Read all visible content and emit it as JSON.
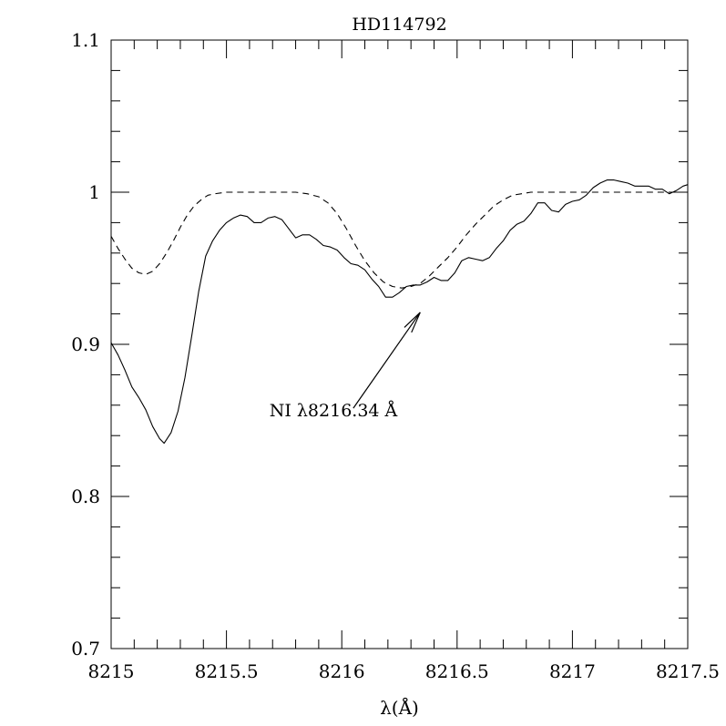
{
  "chart_data": {
    "type": "line",
    "title": "HD114792",
    "xlabel": "λ(Å)",
    "ylabel": "",
    "xlim": [
      8215,
      8217.5
    ],
    "ylim": [
      0.7,
      1.1
    ],
    "xticks": [
      8215,
      8215.5,
      8216,
      8216.5,
      8217,
      8217.5
    ],
    "xtick_labels": [
      "8215",
      "8215.5",
      "8216",
      "8216.5",
      "8217",
      "8217.5"
    ],
    "yticks": [
      0.7,
      0.8,
      0.9,
      1.0,
      1.1
    ],
    "ytick_labels": [
      "0.7",
      "0.8",
      "0.9",
      "1",
      "1.1"
    ],
    "grid": false,
    "annotation": {
      "text": "NI λ8216.34 Å",
      "arrow_from": [
        8216.05,
        0.858
      ],
      "arrow_to": [
        8216.34,
        0.921
      ]
    },
    "series": [
      {
        "style": "solid",
        "points": [
          [
            8215.0,
            0.901
          ],
          [
            8215.03,
            0.893
          ],
          [
            8215.06,
            0.883
          ],
          [
            8215.09,
            0.872
          ],
          [
            8215.12,
            0.865
          ],
          [
            8215.15,
            0.857
          ],
          [
            8215.18,
            0.846
          ],
          [
            8215.21,
            0.838
          ],
          [
            8215.23,
            0.835
          ],
          [
            8215.26,
            0.842
          ],
          [
            8215.29,
            0.856
          ],
          [
            8215.32,
            0.878
          ],
          [
            8215.35,
            0.906
          ],
          [
            8215.38,
            0.935
          ],
          [
            8215.41,
            0.958
          ],
          [
            8215.44,
            0.968
          ],
          [
            8215.47,
            0.975
          ],
          [
            8215.5,
            0.98
          ],
          [
            8215.53,
            0.983
          ],
          [
            8215.56,
            0.985
          ],
          [
            8215.59,
            0.984
          ],
          [
            8215.62,
            0.98
          ],
          [
            8215.65,
            0.98
          ],
          [
            8215.68,
            0.983
          ],
          [
            8215.71,
            0.984
          ],
          [
            8215.74,
            0.982
          ],
          [
            8215.77,
            0.976
          ],
          [
            8215.8,
            0.97
          ],
          [
            8215.83,
            0.972
          ],
          [
            8215.86,
            0.972
          ],
          [
            8215.89,
            0.969
          ],
          [
            8215.92,
            0.965
          ],
          [
            8215.95,
            0.964
          ],
          [
            8215.98,
            0.962
          ],
          [
            8216.01,
            0.957
          ],
          [
            8216.04,
            0.953
          ],
          [
            8216.07,
            0.952
          ],
          [
            8216.1,
            0.949
          ],
          [
            8216.13,
            0.943
          ],
          [
            8216.16,
            0.938
          ],
          [
            8216.19,
            0.931
          ],
          [
            8216.22,
            0.931
          ],
          [
            8216.25,
            0.934
          ],
          [
            8216.28,
            0.938
          ],
          [
            8216.31,
            0.939
          ],
          [
            8216.34,
            0.939
          ],
          [
            8216.37,
            0.941
          ],
          [
            8216.4,
            0.944
          ],
          [
            8216.43,
            0.942
          ],
          [
            8216.46,
            0.942
          ],
          [
            8216.49,
            0.947
          ],
          [
            8216.52,
            0.955
          ],
          [
            8216.55,
            0.957
          ],
          [
            8216.58,
            0.956
          ],
          [
            8216.61,
            0.955
          ],
          [
            8216.64,
            0.957
          ],
          [
            8216.67,
            0.963
          ],
          [
            8216.7,
            0.968
          ],
          [
            8216.73,
            0.975
          ],
          [
            8216.76,
            0.979
          ],
          [
            8216.79,
            0.981
          ],
          [
            8216.82,
            0.986
          ],
          [
            8216.85,
            0.993
          ],
          [
            8216.88,
            0.993
          ],
          [
            8216.91,
            0.988
          ],
          [
            8216.94,
            0.987
          ],
          [
            8216.97,
            0.992
          ],
          [
            8217.0,
            0.994
          ],
          [
            8217.03,
            0.995
          ],
          [
            8217.06,
            0.998
          ],
          [
            8217.09,
            1.003
          ],
          [
            8217.12,
            1.006
          ],
          [
            8217.15,
            1.008
          ],
          [
            8217.18,
            1.008
          ],
          [
            8217.21,
            1.007
          ],
          [
            8217.24,
            1.006
          ],
          [
            8217.27,
            1.004
          ],
          [
            8217.3,
            1.004
          ],
          [
            8217.33,
            1.004
          ],
          [
            8217.36,
            1.002
          ],
          [
            8217.39,
            1.002
          ],
          [
            8217.42,
            0.999
          ],
          [
            8217.45,
            1.001
          ],
          [
            8217.48,
            1.004
          ],
          [
            8217.5,
            1.005
          ]
        ]
      },
      {
        "style": "dashed",
        "points": [
          [
            8215.0,
            0.971
          ],
          [
            8215.03,
            0.963
          ],
          [
            8215.06,
            0.956
          ],
          [
            8215.09,
            0.95
          ],
          [
            8215.12,
            0.947
          ],
          [
            8215.15,
            0.946
          ],
          [
            8215.18,
            0.948
          ],
          [
            8215.21,
            0.953
          ],
          [
            8215.24,
            0.96
          ],
          [
            8215.27,
            0.968
          ],
          [
            8215.3,
            0.977
          ],
          [
            8215.33,
            0.985
          ],
          [
            8215.36,
            0.991
          ],
          [
            8215.39,
            0.995
          ],
          [
            8215.42,
            0.998
          ],
          [
            8215.45,
            0.999
          ],
          [
            8215.5,
            1.0
          ],
          [
            8215.6,
            1.0
          ],
          [
            8215.7,
            1.0
          ],
          [
            8215.8,
            1.0
          ],
          [
            8215.85,
            0.999
          ],
          [
            8215.9,
            0.997
          ],
          [
            8215.94,
            0.993
          ],
          [
            8215.98,
            0.986
          ],
          [
            8216.02,
            0.976
          ],
          [
            8216.06,
            0.965
          ],
          [
            8216.1,
            0.955
          ],
          [
            8216.14,
            0.947
          ],
          [
            8216.18,
            0.941
          ],
          [
            8216.22,
            0.938
          ],
          [
            8216.26,
            0.937
          ],
          [
            8216.3,
            0.938
          ],
          [
            8216.34,
            0.94
          ],
          [
            8216.38,
            0.945
          ],
          [
            8216.42,
            0.951
          ],
          [
            8216.46,
            0.957
          ],
          [
            8216.5,
            0.964
          ],
          [
            8216.54,
            0.972
          ],
          [
            8216.58,
            0.979
          ],
          [
            8216.62,
            0.985
          ],
          [
            8216.66,
            0.991
          ],
          [
            8216.7,
            0.995
          ],
          [
            8216.74,
            0.998
          ],
          [
            8216.78,
            0.999
          ],
          [
            8216.82,
            1.0
          ],
          [
            8217.0,
            1.0
          ],
          [
            8217.2,
            1.0
          ],
          [
            8217.4,
            1.0
          ],
          [
            8217.5,
            1.0
          ]
        ]
      }
    ]
  }
}
